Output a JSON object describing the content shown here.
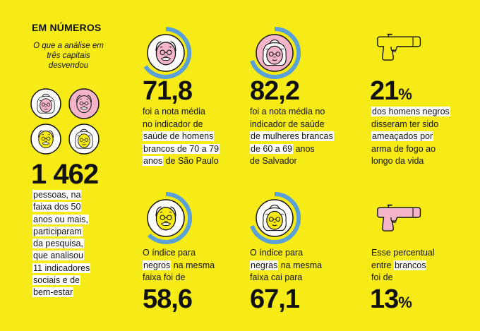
{
  "header": {
    "title": "EM NÚMEROS",
    "subtitle": "O que a análise em três capitais desvendou"
  },
  "intro": {
    "number": "1 462",
    "lines": [
      "pessoas, na",
      "faixa dos 50",
      "anos ou mais,",
      "participaram",
      "da pesquisa,",
      "que analisou",
      "11 indicadores",
      "sociais e de",
      "bem-estar"
    ]
  },
  "stats": {
    "white_men": {
      "number": "71,8",
      "line1": "foi a nota média",
      "line2": "no indicador de",
      "line3": "saúde de homens",
      "line4": "brancos de 70 a 79",
      "line5a": "anos",
      "line5b": " de São Paulo"
    },
    "white_women": {
      "number": "82,2",
      "line1": "foi a nota média no",
      "line2": "indicador de saúde",
      "line3": "de mulheres brancas",
      "line4a": "de 60 a 69",
      "line4b": " anos",
      "line5": "de Salvador"
    },
    "black_men_threat": {
      "number": "21",
      "percent": "%",
      "line1": "dos homens negros",
      "line2": "disseram ter sido",
      "line3": "ameaçados por",
      "line4": "arma de fogo ao",
      "line5": "longo da vida"
    },
    "black_men_index": {
      "line1": "O índice para",
      "line2a": "negros",
      "line2b": " na mesma",
      "line3": "faixa foi de",
      "number": "58,6"
    },
    "black_women_index": {
      "line1": "O índice para",
      "line2a": "negras",
      "line2b": " na mesma",
      "line3": "faixa cai para",
      "number": "67,1"
    },
    "white_men_threat": {
      "line1": "Esse percentual",
      "line2a": "entre ",
      "line2b": "brancos",
      "line3": "foi de",
      "number": "13",
      "percent": "%"
    }
  },
  "colors": {
    "background": "#F7EB17",
    "ring": "#5AA0D8",
    "skin_light": "#F3B5C7",
    "skin_dark": "#F7EB17",
    "gun_yellow": "#F7EB17",
    "gun_pink": "#F3B5C7"
  },
  "icons": [
    "elderly-white-man-icon",
    "elderly-white-woman-icon",
    "pistol-icon",
    "elderly-black-man-icon",
    "elderly-black-woman-icon"
  ]
}
